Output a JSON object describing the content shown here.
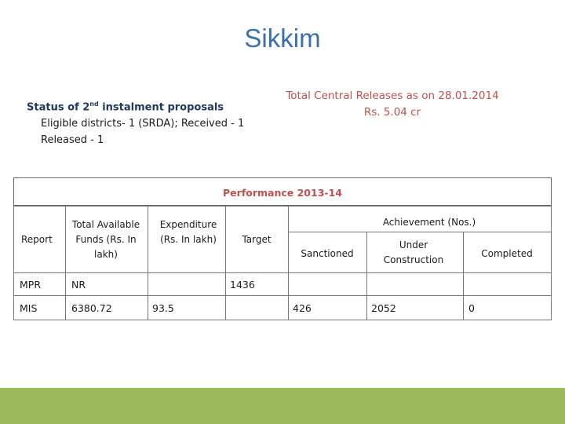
{
  "slide": {
    "title": "Sikkim",
    "status": {
      "heading_pre": "Status of 2",
      "heading_sup": "nd",
      "heading_post": " instalment proposals",
      "line1": "Eligible districts- 1 (SRDA); Received - 1",
      "line2": "Released - 1"
    },
    "releases": {
      "line1": "Total Central Releases as on 28.01.2014",
      "line2": "Rs. 5.04 cr"
    }
  },
  "table": {
    "title": "Performance   2013-14",
    "headers": {
      "report": "Report",
      "funds": "Total Available Funds (Rs. In lakh)",
      "expenditure": "Expenditure (Rs. In lakh)",
      "target": "Target",
      "achievement": "Achievement (Nos.)",
      "sanctioned": "Sanctioned",
      "under_construction": "Under Construction",
      "completed": "Completed"
    },
    "rows": [
      {
        "report": "MPR",
        "funds": "NR",
        "expenditure": "",
        "target": "1436",
        "sanctioned": "",
        "under_construction": "",
        "completed": ""
      },
      {
        "report": "MIS",
        "funds": "6380.72",
        "expenditure": "93.5",
        "target": "",
        "sanctioned": "426",
        "under_construction": "2052",
        "completed": "0"
      }
    ]
  },
  "colors": {
    "title": "#3a6fb0",
    "accent_red": "#c0504d",
    "footer_bar": "#9bbb59"
  }
}
